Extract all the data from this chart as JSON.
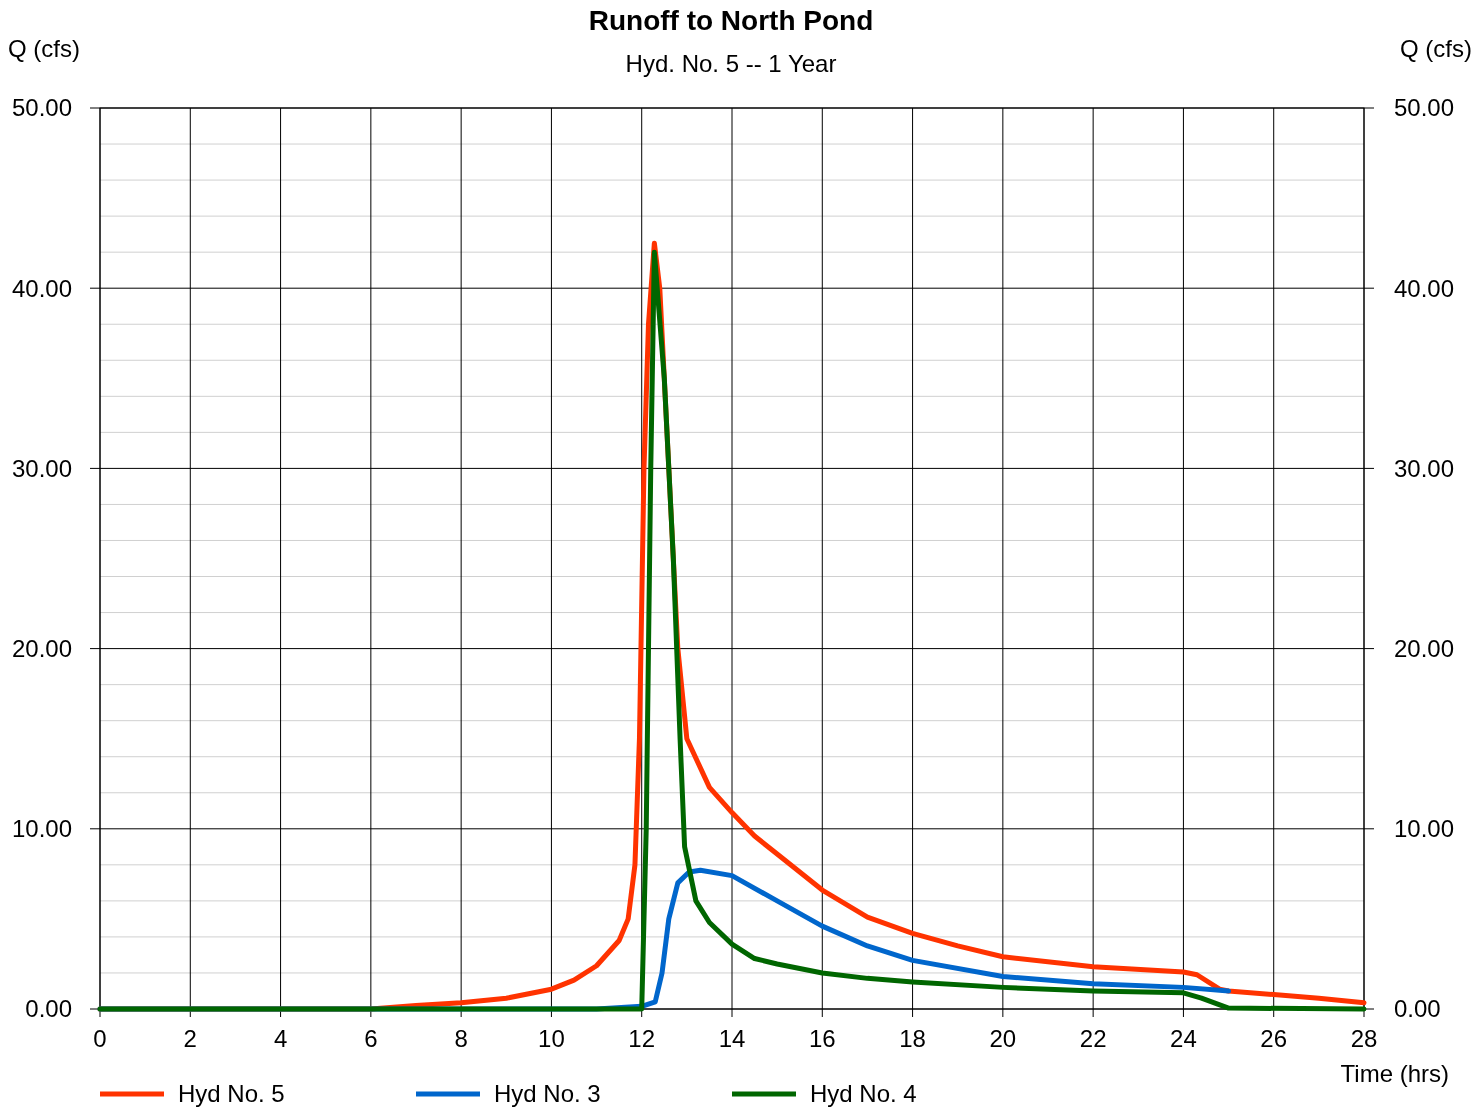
{
  "chart_data": {
    "type": "line",
    "title": "Runoff to North Pond",
    "subtitle": "Hyd. No. 5 -- 1 Year",
    "xlabel": "Time (hrs)",
    "ylabel": "Q (cfs)",
    "y2label": "Q (cfs)",
    "xlim": [
      0,
      28
    ],
    "xticks": [
      0,
      2,
      4,
      6,
      8,
      10,
      12,
      14,
      16,
      18,
      20,
      22,
      24,
      26,
      28
    ],
    "ylim": [
      0,
      50
    ],
    "yticks": [
      {
        "value": 0,
        "label": "0.00"
      },
      {
        "value": 10,
        "label": "10.00"
      },
      {
        "value": 20,
        "label": "20.00"
      },
      {
        "value": 30,
        "label": "30.00"
      },
      {
        "value": 40,
        "label": "40.00"
      },
      {
        "value": 50,
        "label": "50.00"
      }
    ],
    "y2lim": [
      0,
      50
    ],
    "y2ticks": [
      {
        "value": 0,
        "label": "0.00"
      },
      {
        "value": 10,
        "label": "10.00"
      },
      {
        "value": 20,
        "label": "20.00"
      },
      {
        "value": 30,
        "label": "30.00"
      },
      {
        "value": 40,
        "label": "40.00"
      },
      {
        "value": 50,
        "label": "50.00"
      }
    ],
    "grid": true,
    "legend": "bottom",
    "line_style": "solid",
    "series": [
      {
        "name": "Hyd No. 5",
        "color": "#ff3300",
        "x": [
          0,
          6,
          7,
          8,
          9,
          10,
          10.5,
          11,
          11.5,
          11.7,
          11.85,
          11.95,
          12.05,
          12.15,
          12.28,
          12.4,
          12.6,
          12.8,
          13,
          13.5,
          14,
          14.5,
          15,
          16,
          17,
          18,
          19,
          20,
          22,
          24,
          24.3,
          24.8,
          25,
          26,
          27,
          28
        ],
        "values": [
          0,
          0,
          0.2,
          0.35,
          0.6,
          1.1,
          1.6,
          2.4,
          3.8,
          5,
          8,
          15,
          30,
          38,
          42.5,
          40,
          30,
          20,
          15,
          12.3,
          10.9,
          9.6,
          8.6,
          6.6,
          5.1,
          4.2,
          3.5,
          2.9,
          2.35,
          2.05,
          1.9,
          1.1,
          1,
          0.8,
          0.6,
          0.35
        ]
      },
      {
        "name": "Hyd No. 3",
        "color": "#0066cc",
        "x": [
          0,
          11,
          12,
          12.3,
          12.45,
          12.6,
          12.8,
          13.05,
          13.3,
          14,
          15,
          16,
          17,
          18,
          20,
          22,
          24,
          25
        ],
        "values": [
          0,
          0,
          0.15,
          0.4,
          2,
          5,
          7,
          7.6,
          7.7,
          7.4,
          6,
          4.6,
          3.5,
          2.7,
          1.8,
          1.4,
          1.2,
          1
        ]
      },
      {
        "name": "Hyd No. 4",
        "color": "#006600",
        "x": [
          0,
          12,
          12.1,
          12.2,
          12.28,
          12.5,
          12.7,
          12.85,
          12.95,
          13.2,
          13.5,
          14,
          14.5,
          15,
          16,
          17,
          18,
          20,
          22,
          24,
          24.4,
          25,
          28
        ],
        "values": [
          0,
          0,
          10,
          30,
          42,
          35,
          25,
          15,
          9,
          6,
          4.8,
          3.6,
          2.8,
          2.5,
          2,
          1.7,
          1.5,
          1.2,
          1,
          0.9,
          0.6,
          0.05,
          0
        ]
      }
    ]
  }
}
